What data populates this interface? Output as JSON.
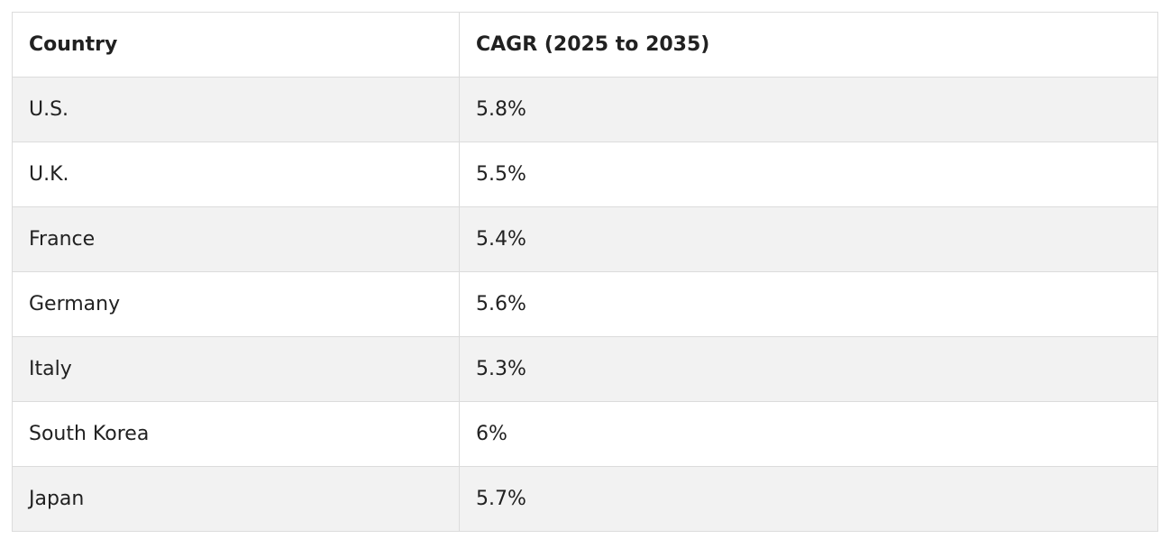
{
  "table": {
    "headers": [
      "Country",
      "CAGR (2025 to 2035)"
    ],
    "rows": [
      [
        "U.S.",
        "5.8%"
      ],
      [
        "U.K.",
        "5.5%"
      ],
      [
        "France",
        "5.4%"
      ],
      [
        "Germany",
        "5.6%"
      ],
      [
        "Italy",
        "5.3%"
      ],
      [
        "South Korea",
        "6%"
      ],
      [
        "Japan",
        "5.7%"
      ]
    ]
  }
}
